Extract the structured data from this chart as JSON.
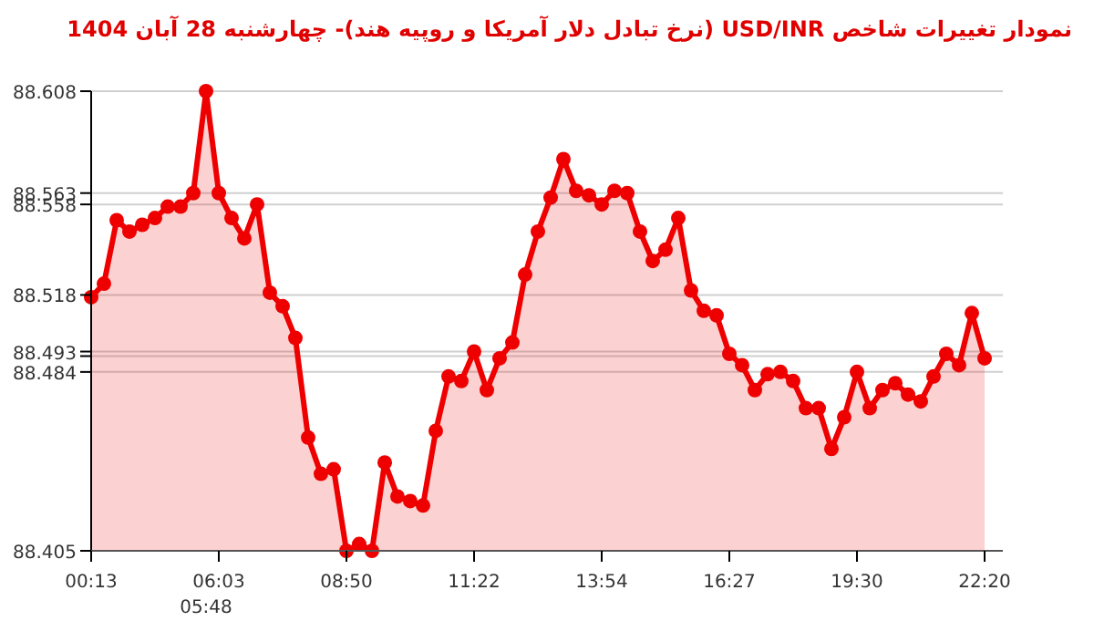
{
  "chart_data": {
    "type": "area",
    "title": "نمودار تغییرات شاخص USD/INR (نرخ تبادل دلار آمریکا و روپیه هند)- چهارشنبه  28 آبان 1404",
    "categories": [
      "00:13",
      null,
      null,
      null,
      null,
      null,
      null,
      null,
      null,
      null,
      "06:03",
      null,
      null,
      null,
      null,
      null,
      null,
      null,
      null,
      null,
      "08:50",
      null,
      null,
      null,
      null,
      null,
      null,
      null,
      null,
      null,
      "11:22",
      null,
      null,
      null,
      null,
      null,
      null,
      null,
      null,
      null,
      "13:54",
      null,
      null,
      null,
      null,
      null,
      null,
      null,
      null,
      null,
      "16:27",
      null,
      null,
      null,
      null,
      null,
      null,
      null,
      null,
      null,
      "19:30",
      null,
      null,
      null,
      null,
      null,
      null,
      null,
      null,
      null,
      "22:20"
    ],
    "series": [
      {
        "color": "#ee0000",
        "values": [
          88.517,
          88.523,
          88.551,
          88.546,
          88.549,
          88.552,
          88.557,
          88.557,
          88.563,
          88.608,
          88.563,
          88.552,
          88.543,
          88.558,
          88.519,
          88.513,
          88.499,
          88.455,
          88.439,
          88.441,
          88.405,
          88.408,
          88.405,
          88.444,
          88.429,
          88.427,
          88.425,
          88.458,
          88.482,
          88.48,
          88.493,
          88.476,
          88.49,
          88.497,
          88.527,
          88.546,
          88.561,
          88.578,
          88.564,
          88.562,
          88.558,
          88.564,
          88.563,
          88.546,
          88.533,
          88.538,
          88.552,
          88.52,
          88.511,
          88.509,
          88.492,
          88.487,
          88.476,
          88.483,
          88.484,
          88.48,
          88.468,
          88.468,
          88.45,
          88.464,
          88.484,
          88.468,
          88.476,
          88.479,
          88.474,
          88.471,
          88.482,
          88.492,
          88.487,
          88.51,
          88.49
        ]
      }
    ],
    "ylim": [
      88.405,
      88.608
    ],
    "yticks": [
      88.405,
      88.484,
      {
        "value": 88.491,
        "label": null
      },
      88.493,
      88.518,
      88.558,
      88.563,
      88.608
    ],
    "annotations": [
      "05:48"
    ],
    "grid": "y",
    "marker": "circle",
    "line_style": "solid"
  }
}
